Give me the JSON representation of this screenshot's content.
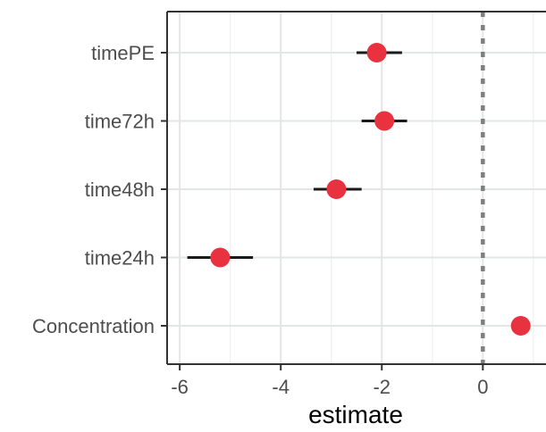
{
  "chart_data": {
    "type": "scatter",
    "title": "",
    "xlabel": "estimate",
    "ylabel": "",
    "xlim": [
      -6.25,
      1.25
    ],
    "x_ticks": [
      -6,
      -4,
      -2,
      0
    ],
    "x_tick_labels": [
      "-6",
      "-4",
      "-2",
      "0"
    ],
    "reference_line_x": 0,
    "grid": true,
    "point_color": "#e8323f",
    "errorbar_color": "#1a1a1a",
    "reference_line_color": "#7f7f7f",
    "categories": [
      "timePE",
      "time72h",
      "time48h",
      "time24h",
      "Concentration"
    ],
    "points": [
      {
        "term": "timePE",
        "estimate": -2.1,
        "conf_low": -2.5,
        "conf_high": -1.6
      },
      {
        "term": "time72h",
        "estimate": -1.95,
        "conf_low": -2.4,
        "conf_high": -1.5
      },
      {
        "term": "time48h",
        "estimate": -2.9,
        "conf_low": -3.35,
        "conf_high": -2.4
      },
      {
        "term": "time24h",
        "estimate": -5.2,
        "conf_low": -5.85,
        "conf_high": -4.55
      },
      {
        "term": "Concentration",
        "estimate": 0.75,
        "conf_low": 0.75,
        "conf_high": 0.75
      }
    ]
  }
}
